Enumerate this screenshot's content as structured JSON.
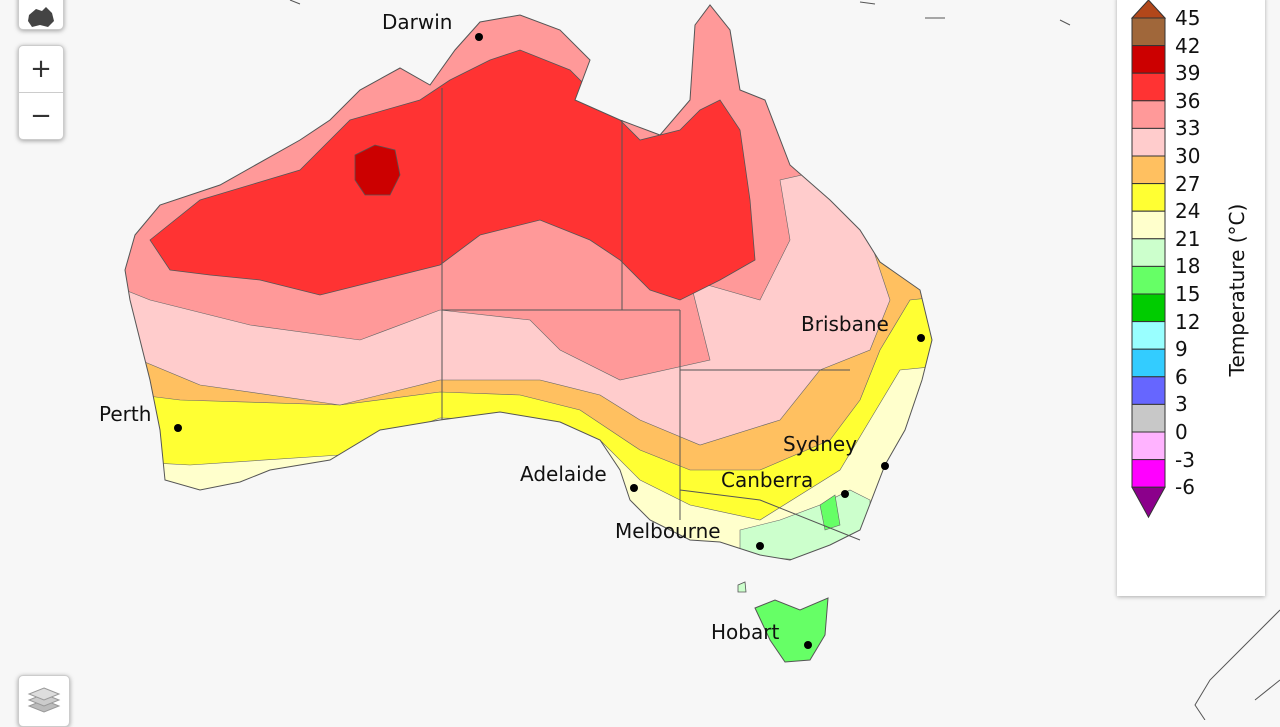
{
  "controls": {
    "zoom_in": "+",
    "zoom_out": "−",
    "home_icon": "australia-icon",
    "layers_icon": "layers-icon"
  },
  "cities": [
    {
      "name": "Darwin"
    },
    {
      "name": "Perth"
    },
    {
      "name": "Brisbane"
    },
    {
      "name": "Sydney"
    },
    {
      "name": "Canberra"
    },
    {
      "name": "Adelaide"
    },
    {
      "name": "Melbourne"
    },
    {
      "name": "Hobart"
    }
  ],
  "legend": {
    "title": "Temperature (°C)",
    "ticks": [
      "45",
      "42",
      "39",
      "36",
      "33",
      "30",
      "27",
      "24",
      "21",
      "18",
      "15",
      "12",
      "9",
      "6",
      "3",
      "0",
      "-3",
      "-6"
    ],
    "colors": [
      "#a0673a",
      "#cc0000",
      "#ff3333",
      "#ff9999",
      "#ffcccc",
      "#ffc060",
      "#ffff33",
      "#ffffcc",
      "#ccffcc",
      "#66ff66",
      "#00cc00",
      "#99ffff",
      "#33ccff",
      "#6666ff",
      "#c8c8c8",
      "#ffb3ff",
      "#ff00ff"
    ],
    "top_arrow_color": "#b2471a",
    "bottom_arrow_color": "#8b008b"
  }
}
